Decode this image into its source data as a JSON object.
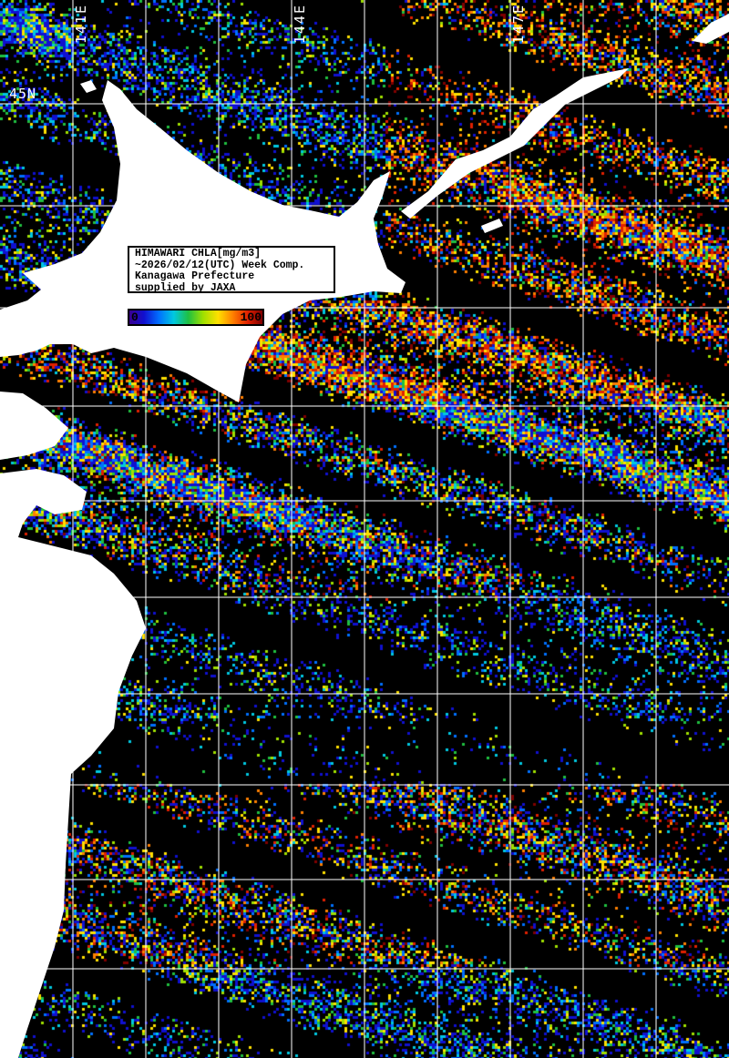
{
  "info_box": {
    "lines": [
      "HIMAWARI CHLA[mg/m3]",
      "~2026/02/12(UTC) Week Comp.",
      "Kanagawa Prefecture",
      "supplied by JAXA"
    ]
  },
  "colorbar": {
    "min_label": "0",
    "max_label": "100",
    "colors": [
      "#3a0090",
      "#1010d0",
      "#0070ff",
      "#00c8e0",
      "#20c040",
      "#a0e000",
      "#ffe000",
      "#ff8000",
      "#e02000",
      "#800000"
    ]
  },
  "grid_labels": {
    "lon": [
      "141E",
      "144E",
      "147E"
    ],
    "lat": [
      "45N"
    ]
  },
  "colors": {
    "land": "#ffffff",
    "no_data": "#000000",
    "grid": "#ffffff"
  }
}
